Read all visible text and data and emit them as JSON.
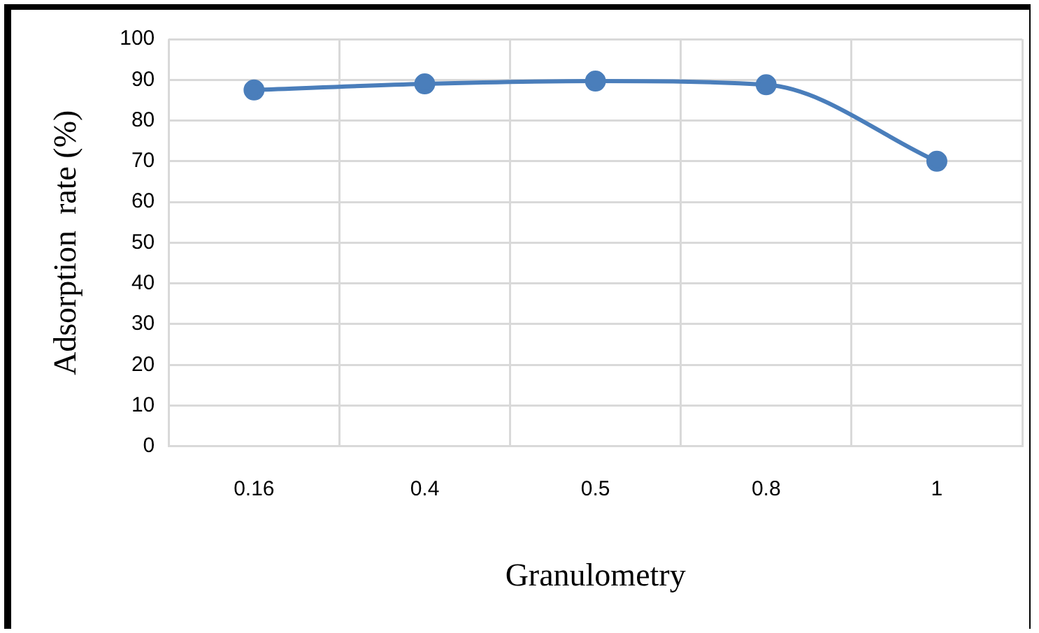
{
  "chart_data": {
    "type": "line",
    "xlabel": "Granulometry",
    "ylabel": "Adsorption  rate (%)",
    "categories": [
      "0.16",
      "0.4",
      "0.5",
      "0.8",
      "1"
    ],
    "series": [
      {
        "color": "#4a7ebb",
        "values": [
          87.5,
          89,
          89.7,
          88.8,
          70
        ]
      }
    ],
    "ylim": [
      0,
      100
    ],
    "yticks": [
      0,
      10,
      20,
      30,
      40,
      50,
      60,
      70,
      80,
      90,
      100
    ],
    "grid": true,
    "legend": false,
    "marker": "circle",
    "line_style": "solid"
  }
}
